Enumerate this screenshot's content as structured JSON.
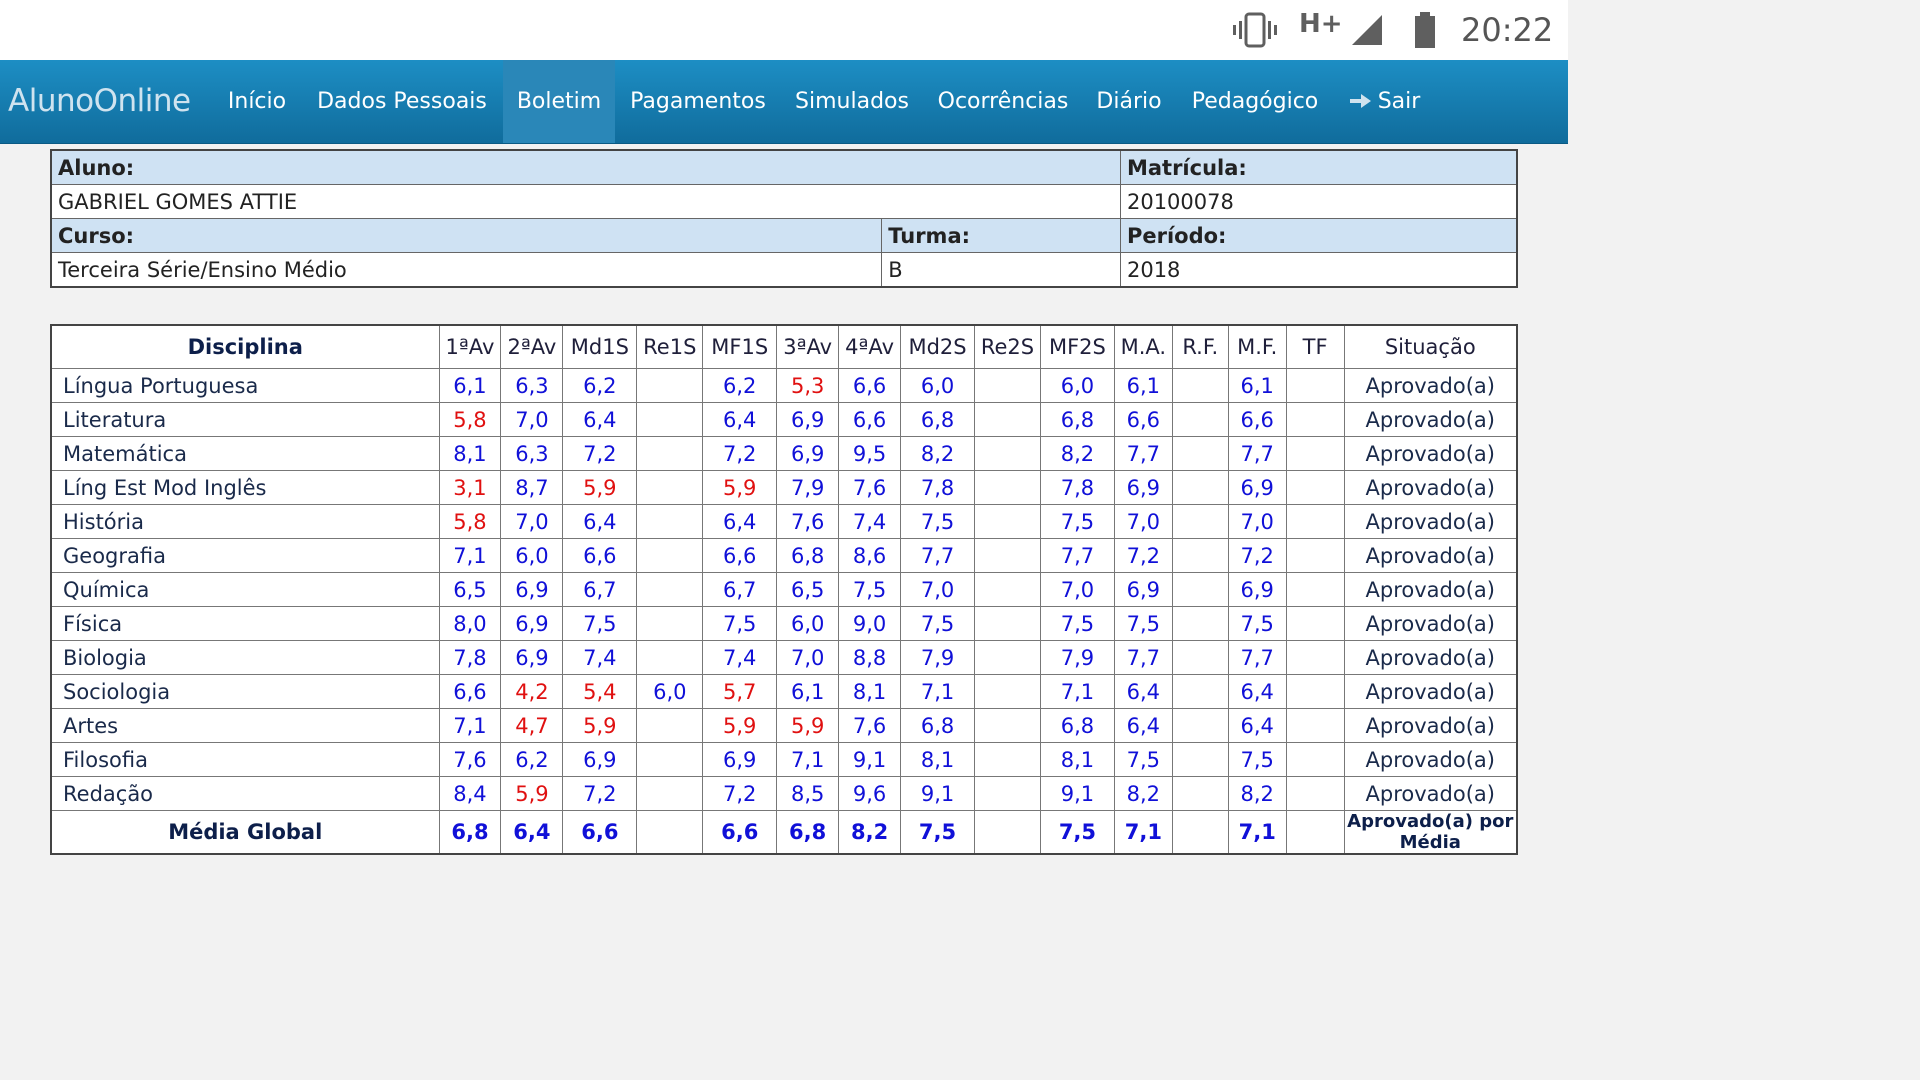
{
  "status_bar": {
    "network": "H+",
    "time": "20:22",
    "icons": [
      "vibrate-icon",
      "signal-icon",
      "battery-icon"
    ]
  },
  "nav": {
    "brand": "AlunoOnline",
    "items": [
      {
        "label": "Início"
      },
      {
        "label": "Dados Pessoais"
      },
      {
        "label": "Boletim",
        "active": true
      },
      {
        "label": "Pagamentos"
      },
      {
        "label": "Simulados"
      },
      {
        "label": "Ocorrências"
      },
      {
        "label": "Diário"
      },
      {
        "label": "Pedagógico"
      },
      {
        "label": "Sair",
        "icon": "arrow-right-icon"
      }
    ]
  },
  "student": {
    "aluno_label": "Aluno:",
    "aluno": "GABRIEL GOMES ATTIE",
    "matricula_label": "Matrícula:",
    "matricula": "20100078",
    "curso_label": "Curso:",
    "curso": "Terceira Série/Ensino Médio",
    "turma_label": "Turma:",
    "turma": "B",
    "periodo_label": "Período:",
    "periodo": "2018"
  },
  "grades": {
    "headers": [
      "Disciplina",
      "1ªAv",
      "2ªAv",
      "Md1S",
      "Re1S",
      "MF1S",
      "3ªAv",
      "4ªAv",
      "Md2S",
      "Re2S",
      "MF2S",
      "M.A.",
      "R.F.",
      "M.F.",
      "TF",
      "Situação"
    ],
    "rows": [
      {
        "d": "Língua Portuguesa",
        "v": [
          "6,1",
          "6,3",
          "6,2",
          "",
          "6,2",
          "5,3",
          "6,6",
          "6,0",
          "",
          "6,0",
          "6,1",
          "",
          "6,1",
          ""
        ],
        "red": [
          5
        ],
        "s": "Aprovado(a)"
      },
      {
        "d": "Literatura",
        "v": [
          "5,8",
          "7,0",
          "6,4",
          "",
          "6,4",
          "6,9",
          "6,6",
          "6,8",
          "",
          "6,8",
          "6,6",
          "",
          "6,6",
          ""
        ],
        "red": [
          0
        ],
        "s": "Aprovado(a)"
      },
      {
        "d": "Matemática",
        "v": [
          "8,1",
          "6,3",
          "7,2",
          "",
          "7,2",
          "6,9",
          "9,5",
          "8,2",
          "",
          "8,2",
          "7,7",
          "",
          "7,7",
          ""
        ],
        "red": [],
        "s": "Aprovado(a)"
      },
      {
        "d": "Líng Est Mod Inglês",
        "v": [
          "3,1",
          "8,7",
          "5,9",
          "",
          "5,9",
          "7,9",
          "7,6",
          "7,8",
          "",
          "7,8",
          "6,9",
          "",
          "6,9",
          ""
        ],
        "red": [
          0,
          2,
          4
        ],
        "s": "Aprovado(a)"
      },
      {
        "d": "História",
        "v": [
          "5,8",
          "7,0",
          "6,4",
          "",
          "6,4",
          "7,6",
          "7,4",
          "7,5",
          "",
          "7,5",
          "7,0",
          "",
          "7,0",
          ""
        ],
        "red": [
          0
        ],
        "s": "Aprovado(a)"
      },
      {
        "d": "Geografia",
        "v": [
          "7,1",
          "6,0",
          "6,6",
          "",
          "6,6",
          "6,8",
          "8,6",
          "7,7",
          "",
          "7,7",
          "7,2",
          "",
          "7,2",
          ""
        ],
        "red": [],
        "s": "Aprovado(a)"
      },
      {
        "d": "Química",
        "v": [
          "6,5",
          "6,9",
          "6,7",
          "",
          "6,7",
          "6,5",
          "7,5",
          "7,0",
          "",
          "7,0",
          "6,9",
          "",
          "6,9",
          ""
        ],
        "red": [],
        "s": "Aprovado(a)"
      },
      {
        "d": "Física",
        "v": [
          "8,0",
          "6,9",
          "7,5",
          "",
          "7,5",
          "6,0",
          "9,0",
          "7,5",
          "",
          "7,5",
          "7,5",
          "",
          "7,5",
          ""
        ],
        "red": [],
        "s": "Aprovado(a)"
      },
      {
        "d": "Biologia",
        "v": [
          "7,8",
          "6,9",
          "7,4",
          "",
          "7,4",
          "7,0",
          "8,8",
          "7,9",
          "",
          "7,9",
          "7,7",
          "",
          "7,7",
          ""
        ],
        "red": [],
        "s": "Aprovado(a)"
      },
      {
        "d": "Sociologia",
        "v": [
          "6,6",
          "4,2",
          "5,4",
          "6,0",
          "5,7",
          "6,1",
          "8,1",
          "7,1",
          "",
          "7,1",
          "6,4",
          "",
          "6,4",
          ""
        ],
        "red": [
          1,
          2,
          4
        ],
        "s": "Aprovado(a)"
      },
      {
        "d": "Artes",
        "v": [
          "7,1",
          "4,7",
          "5,9",
          "",
          "5,9",
          "5,9",
          "7,6",
          "6,8",
          "",
          "6,8",
          "6,4",
          "",
          "6,4",
          ""
        ],
        "red": [
          1,
          2,
          4,
          5
        ],
        "s": "Aprovado(a)"
      },
      {
        "d": "Filosofia",
        "v": [
          "7,6",
          "6,2",
          "6,9",
          "",
          "6,9",
          "7,1",
          "9,1",
          "8,1",
          "",
          "8,1",
          "7,5",
          "",
          "7,5",
          ""
        ],
        "red": [],
        "s": "Aprovado(a)"
      },
      {
        "d": "Redação",
        "v": [
          "8,4",
          "5,9",
          "7,2",
          "",
          "7,2",
          "8,5",
          "9,6",
          "9,1",
          "",
          "9,1",
          "8,2",
          "",
          "8,2",
          ""
        ],
        "red": [
          1
        ],
        "s": "Aprovado(a)"
      }
    ],
    "total": {
      "d": "Média Global",
      "v": [
        "6,8",
        "6,4",
        "6,6",
        "",
        "6,6",
        "6,8",
        "8,2",
        "7,5",
        "",
        "7,5",
        "7,1",
        "",
        "7,1",
        ""
      ],
      "s": "Aprovado(a) por Média"
    }
  },
  "colors": {
    "nav_bg": "#1d8ec4",
    "label_bg": "#cfe2f3",
    "value_blue": "#1010d8",
    "value_red": "#e01010"
  }
}
